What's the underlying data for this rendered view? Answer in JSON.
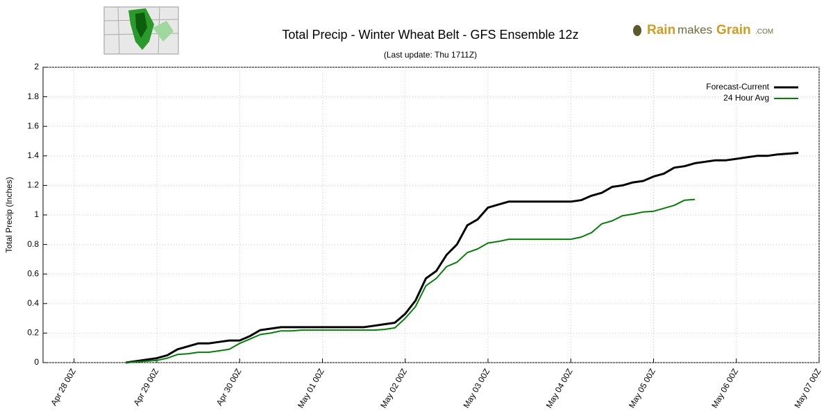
{
  "chart_data": {
    "type": "line",
    "title": "Total Precip - Winter Wheat Belt - GFS Ensemble 12z",
    "subtitle": "(Last update: Thu 1711Z)",
    "y_label": "Total Precip (Inches)",
    "logo": {
      "brand_a": "Rain",
      "brand_b": "makes",
      "brand_c": "Grain",
      "suffix": ".COM"
    },
    "x": [
      "Apr 28 15Z",
      "Apr 28 18Z",
      "Apr 28 21Z",
      "Apr 29 00Z",
      "Apr 29 03Z",
      "Apr 29 06Z",
      "Apr 29 09Z",
      "Apr 29 12Z",
      "Apr 29 15Z",
      "Apr 29 18Z",
      "Apr 29 21Z",
      "Apr 30 00Z",
      "Apr 30 03Z",
      "Apr 30 06Z",
      "Apr 30 09Z",
      "Apr 30 12Z",
      "Apr 30 15Z",
      "Apr 30 18Z",
      "Apr 30 21Z",
      "May 01 00Z",
      "May 01 03Z",
      "May 01 06Z",
      "May 01 09Z",
      "May 01 12Z",
      "May 01 15Z",
      "May 01 18Z",
      "May 01 21Z",
      "May 02 00Z",
      "May 02 03Z",
      "May 02 06Z",
      "May 02 09Z",
      "May 02 12Z",
      "May 02 15Z",
      "May 02 18Z",
      "May 02 21Z",
      "May 03 00Z",
      "May 03 03Z",
      "May 03 06Z",
      "May 03 09Z",
      "May 03 12Z",
      "May 03 15Z",
      "May 03 18Z",
      "May 03 21Z",
      "May 04 00Z",
      "May 04 03Z",
      "May 04 06Z",
      "May 04 09Z",
      "May 04 12Z",
      "May 04 15Z",
      "May 04 18Z",
      "May 04 21Z",
      "May 05 00Z",
      "May 05 03Z",
      "May 05 06Z",
      "May 05 09Z",
      "May 05 12Z",
      "May 05 15Z",
      "May 05 18Z",
      "May 05 21Z",
      "May 06 00Z",
      "May 06 03Z",
      "May 06 06Z",
      "May 06 09Z",
      "May 06 12Z",
      "May 06 15Z",
      "May 06 18Z"
    ],
    "series": [
      {
        "name": "Forecast-Current",
        "color": "#000000",
        "width": 3,
        "values": [
          0,
          0.01,
          0.02,
          0.03,
          0.05,
          0.09,
          0.11,
          0.13,
          0.13,
          0.14,
          0.15,
          0.15,
          0.18,
          0.22,
          0.23,
          0.24,
          0.24,
          0.24,
          0.24,
          0.24,
          0.24,
          0.24,
          0.24,
          0.24,
          0.25,
          0.26,
          0.27,
          0.33,
          0.42,
          0.57,
          0.62,
          0.73,
          0.8,
          0.93,
          0.97,
          1.05,
          1.07,
          1.09,
          1.09,
          1.09,
          1.09,
          1.09,
          1.09,
          1.09,
          1.1,
          1.13,
          1.15,
          1.19,
          1.2,
          1.22,
          1.23,
          1.26,
          1.28,
          1.32,
          1.33,
          1.35,
          1.36,
          1.37,
          1.37,
          1.38,
          1.39,
          1.4,
          1.4,
          1.41,
          1.415,
          1.42
        ]
      },
      {
        "name": "24 Hour Avg",
        "color": "#008000",
        "width": 2,
        "values": [
          0,
          0.005,
          0.01,
          0.015,
          0.03,
          0.055,
          0.06,
          0.07,
          0.07,
          0.08,
          0.09,
          0.13,
          0.16,
          0.19,
          0.2,
          0.215,
          0.215,
          0.22,
          0.22,
          0.22,
          0.22,
          0.22,
          0.22,
          0.22,
          0.22,
          0.225,
          0.235,
          0.3,
          0.38,
          0.52,
          0.57,
          0.65,
          0.68,
          0.745,
          0.77,
          0.81,
          0.82,
          0.835,
          0.835,
          0.835,
          0.835,
          0.835,
          0.835,
          0.835,
          0.85,
          0.88,
          0.94,
          0.96,
          0.995,
          1.005,
          1.02,
          1.025,
          1.045,
          1.065,
          1.1,
          1.105,
          null,
          null,
          null,
          null,
          null,
          null,
          null,
          null,
          null,
          null
        ]
      }
    ],
    "xlim": [
      "Apr 27 15Z",
      "May 07 00Z"
    ],
    "xticks": [
      "Apr 28 00Z",
      "Apr 29 00Z",
      "Apr 30 00Z",
      "May 01 00Z",
      "May 02 00Z",
      "May 03 00Z",
      "May 04 00Z",
      "May 05 00Z",
      "May 06 00Z",
      "May 07 00Z"
    ],
    "ylim": [
      0,
      2
    ],
    "yticks": [
      0,
      0.2,
      0.4,
      0.6,
      0.8,
      1,
      1.2,
      1.4,
      1.6,
      1.8,
      2
    ],
    "grid": true,
    "legend": "upper right"
  }
}
